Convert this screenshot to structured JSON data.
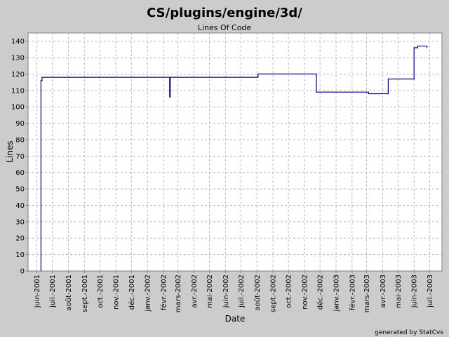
{
  "chart_data": {
    "type": "line",
    "title": "CS/plugins/engine/3d/",
    "subtitle": "Lines Of Code",
    "xlabel": "Date",
    "ylabel": "Lines",
    "ylim": [
      0,
      145
    ],
    "yticks": [
      0,
      10,
      20,
      30,
      40,
      50,
      60,
      70,
      80,
      90,
      100,
      110,
      120,
      130,
      140
    ],
    "xlim": [
      "2001-05-15",
      "2003-07-25"
    ],
    "xticks": [
      {
        "date": "2001-06-01",
        "label": "juin-2001"
      },
      {
        "date": "2001-07-01",
        "label": "juil.-2001"
      },
      {
        "date": "2001-08-01",
        "label": "août-2001"
      },
      {
        "date": "2001-09-01",
        "label": "sept.-2001"
      },
      {
        "date": "2001-10-01",
        "label": "oct.-2001"
      },
      {
        "date": "2001-11-01",
        "label": "nov.-2001"
      },
      {
        "date": "2001-12-01",
        "label": "déc.-2001"
      },
      {
        "date": "2002-01-01",
        "label": "janv.-2002"
      },
      {
        "date": "2002-02-01",
        "label": "févr.-2002"
      },
      {
        "date": "2002-03-01",
        "label": "mars-2002"
      },
      {
        "date": "2002-04-01",
        "label": "avr.-2002"
      },
      {
        "date": "2002-05-01",
        "label": "mai-2002"
      },
      {
        "date": "2002-06-01",
        "label": "juin-2002"
      },
      {
        "date": "2002-07-01",
        "label": "juil.-2002"
      },
      {
        "date": "2002-08-01",
        "label": "août-2002"
      },
      {
        "date": "2002-09-01",
        "label": "sept.-2002"
      },
      {
        "date": "2002-10-01",
        "label": "oct.-2002"
      },
      {
        "date": "2002-11-01",
        "label": "nov.-2002"
      },
      {
        "date": "2002-12-01",
        "label": "déc.-2002"
      },
      {
        "date": "2003-01-01",
        "label": "janv.-2003"
      },
      {
        "date": "2003-02-01",
        "label": "févr.-2003"
      },
      {
        "date": "2003-03-01",
        "label": "mars-2003"
      },
      {
        "date": "2003-04-01",
        "label": "avr.-2003"
      },
      {
        "date": "2003-05-01",
        "label": "mai-2003"
      },
      {
        "date": "2003-06-01",
        "label": "juin-2003"
      },
      {
        "date": "2003-07-01",
        "label": "juil.-2003"
      }
    ],
    "grid": true,
    "line_color": "#000080",
    "step": true,
    "series": [
      {
        "points": [
          {
            "x": "2001-06-08",
            "y": 0
          },
          {
            "x": "2001-06-09",
            "y": 116
          },
          {
            "x": "2001-06-11",
            "y": 118
          },
          {
            "x": "2002-02-13",
            "y": 106
          },
          {
            "x": "2002-02-14",
            "y": 118
          },
          {
            "x": "2002-08-03",
            "y": 120
          },
          {
            "x": "2002-11-24",
            "y": 109
          },
          {
            "x": "2003-03-05",
            "y": 108
          },
          {
            "x": "2003-04-12",
            "y": 117
          },
          {
            "x": "2003-06-01",
            "y": 136
          },
          {
            "x": "2003-06-08",
            "y": 137
          },
          {
            "x": "2003-06-26",
            "y": 136
          }
        ]
      }
    ]
  },
  "footer": "generated by StatCvs",
  "colors": {
    "background": "#cccccc",
    "plot_background": "#ffffff",
    "grid": "#b8b8b8"
  }
}
